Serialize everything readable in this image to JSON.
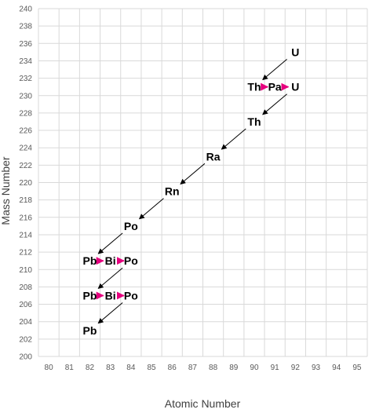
{
  "chart_data": {
    "type": "scatter",
    "title": "",
    "xlabel": "Atomic Number",
    "ylabel": "Mass Number",
    "xlim": [
      79.5,
      95.5
    ],
    "ylim": [
      200,
      240
    ],
    "x_ticks": [
      80,
      81,
      82,
      83,
      84,
      85,
      86,
      87,
      88,
      89,
      90,
      91,
      92,
      93,
      94,
      95
    ],
    "y_ticks": [
      200,
      202,
      204,
      206,
      208,
      210,
      212,
      214,
      216,
      218,
      220,
      222,
      224,
      226,
      228,
      230,
      232,
      234,
      236,
      238,
      240
    ],
    "grid": true,
    "legend": "none",
    "nuclides": [
      {
        "label": "U",
        "x": 92,
        "y": 235
      },
      {
        "label": "Th",
        "x": 90,
        "y": 231
      },
      {
        "label": "Pa",
        "x": 91,
        "y": 231
      },
      {
        "label": "U",
        "x": 92,
        "y": 231
      },
      {
        "label": "Th",
        "x": 90,
        "y": 227
      },
      {
        "label": "Ra",
        "x": 88,
        "y": 223
      },
      {
        "label": "Rn",
        "x": 86,
        "y": 219
      },
      {
        "label": "Po",
        "x": 84,
        "y": 215
      },
      {
        "label": "Pb",
        "x": 82,
        "y": 211
      },
      {
        "label": "Bi",
        "x": 83,
        "y": 211
      },
      {
        "label": "Po",
        "x": 84,
        "y": 211
      },
      {
        "label": "Pb",
        "x": 82,
        "y": 207
      },
      {
        "label": "Bi",
        "x": 83,
        "y": 207
      },
      {
        "label": "Po",
        "x": 84,
        "y": 207
      },
      {
        "label": "Pb",
        "x": 82,
        "y": 203
      }
    ],
    "alpha_decays": [
      {
        "from": [
          92,
          235
        ],
        "to": [
          90,
          231
        ]
      },
      {
        "from": [
          92,
          231
        ],
        "to": [
          90,
          227
        ]
      },
      {
        "from": [
          90,
          227
        ],
        "to": [
          88,
          223
        ]
      },
      {
        "from": [
          88,
          223
        ],
        "to": [
          86,
          219
        ]
      },
      {
        "from": [
          86,
          219
        ],
        "to": [
          84,
          215
        ]
      },
      {
        "from": [
          84,
          215
        ],
        "to": [
          82,
          211
        ]
      },
      {
        "from": [
          84,
          211
        ],
        "to": [
          82,
          207
        ]
      },
      {
        "from": [
          84,
          207
        ],
        "to": [
          82,
          203
        ]
      }
    ],
    "beta_decays": [
      {
        "from": [
          90,
          231
        ],
        "to": [
          91,
          231
        ]
      },
      {
        "from": [
          91,
          231
        ],
        "to": [
          92,
          231
        ]
      },
      {
        "from": [
          82,
          211
        ],
        "to": [
          83,
          211
        ]
      },
      {
        "from": [
          83,
          211
        ],
        "to": [
          84,
          211
        ]
      },
      {
        "from": [
          82,
          207
        ],
        "to": [
          83,
          207
        ]
      },
      {
        "from": [
          83,
          207
        ],
        "to": [
          84,
          207
        ]
      }
    ],
    "colors": {
      "alpha_arrow": "#000000",
      "beta_arrow": "#e6007e",
      "grid": "#d9d9d9",
      "text": "#000000"
    }
  }
}
